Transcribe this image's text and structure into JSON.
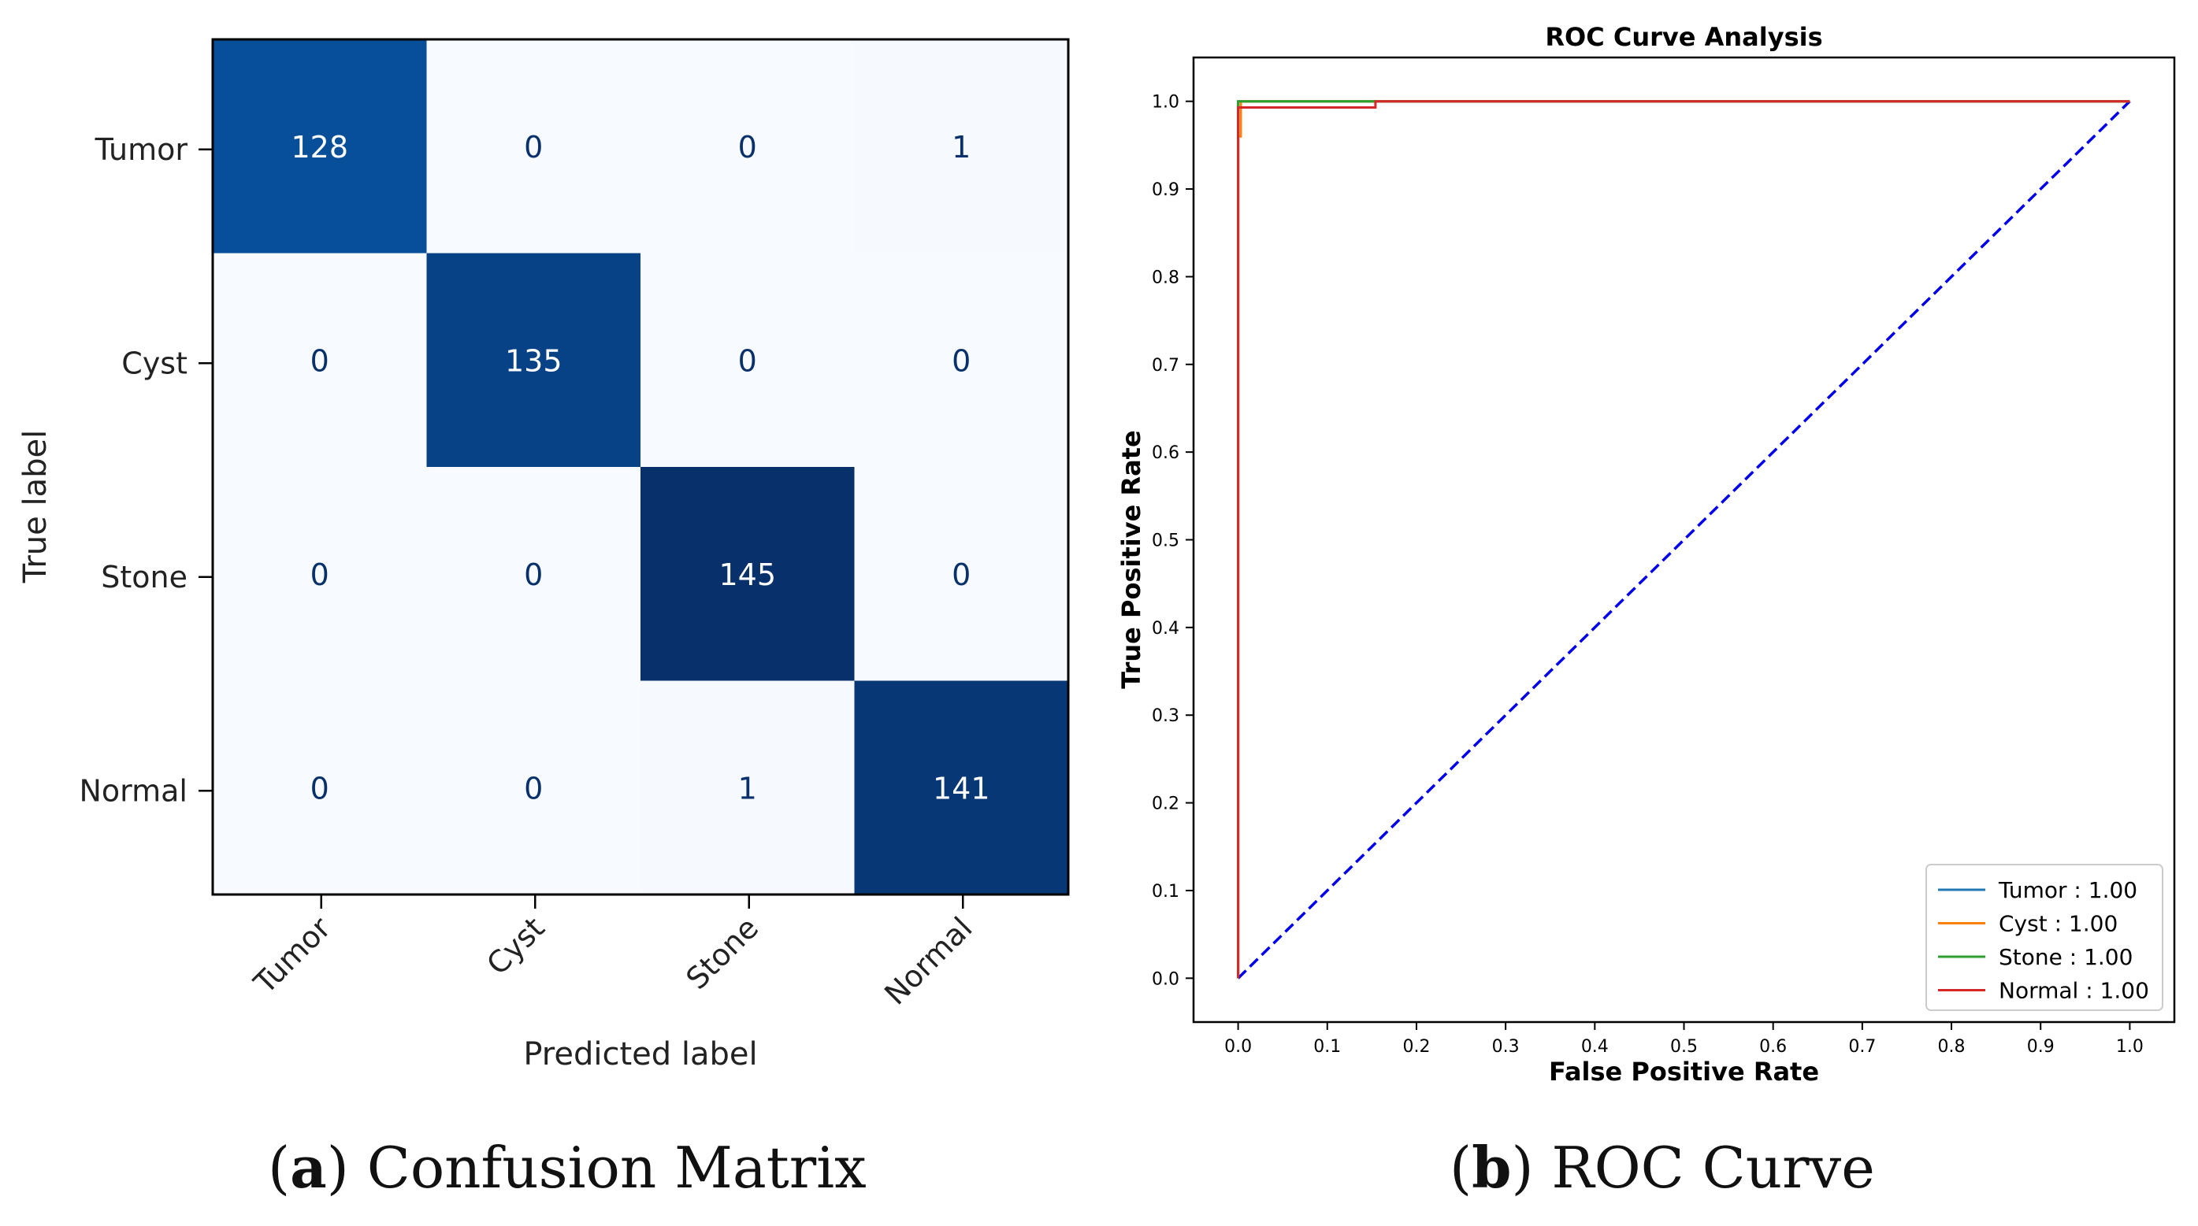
{
  "chart_data": [
    {
      "type": "heatmap",
      "title": "",
      "xlabel": "Predicted label",
      "ylabel": "True label",
      "x_categories": [
        "Tumor",
        "Cyst",
        "Stone",
        "Normal"
      ],
      "y_categories": [
        "Tumor",
        "Cyst",
        "Stone",
        "Normal"
      ],
      "matrix": [
        [
          128,
          0,
          0,
          1
        ],
        [
          0,
          135,
          0,
          0
        ],
        [
          0,
          0,
          145,
          0
        ],
        [
          0,
          0,
          1,
          141
        ]
      ],
      "colormap": "Blues",
      "value_range": [
        0,
        145
      ]
    },
    {
      "type": "line",
      "title": "ROC Curve Analysis",
      "xlabel": "False Positive Rate",
      "ylabel": "True Positive Rate",
      "xlim": [
        -0.05,
        1.05
      ],
      "ylim": [
        -0.05,
        1.05
      ],
      "xticks": [
        "0.0",
        "0.1",
        "0.2",
        "0.3",
        "0.4",
        "0.5",
        "0.6",
        "0.7",
        "0.8",
        "0.9",
        "1.0"
      ],
      "yticks": [
        "0.0",
        "0.1",
        "0.2",
        "0.3",
        "0.4",
        "0.5",
        "0.6",
        "0.7",
        "0.8",
        "0.9",
        "1.0"
      ],
      "legend_position": "bottom-right",
      "series": [
        {
          "name": "Tumor",
          "label": "Tumor : 1.00",
          "color": "#1f77b4",
          "x": [
            0,
            0,
            1
          ],
          "y": [
            0,
            1,
            1
          ]
        },
        {
          "name": "Cyst",
          "label": "Cyst : 1.00",
          "color": "#ff7f0e",
          "x": [
            0,
            0,
            0.003,
            0.003,
            1
          ],
          "y": [
            0,
            0.96,
            0.96,
            1,
            1
          ]
        },
        {
          "name": "Stone",
          "label": "Stone : 1.00",
          "color": "#2ca02c",
          "x": [
            0,
            0,
            1
          ],
          "y": [
            0,
            1,
            1
          ]
        },
        {
          "name": "Normal",
          "label": "Normal : 1.00",
          "color": "#d62728",
          "x": [
            0,
            0,
            0.003,
            0.003,
            0.154,
            0.154,
            1
          ],
          "y": [
            0,
            0.993,
            0.993,
            0.993,
            0.993,
            1,
            1
          ]
        }
      ],
      "diagonal": {
        "x": [
          0,
          1
        ],
        "y": [
          0,
          1
        ],
        "color": "#0000ee",
        "style": "dashed"
      }
    }
  ],
  "captions": {
    "a_letter": "a",
    "a_text": "Confusion Matrix",
    "b_letter": "b",
    "b_text": "ROC Curve"
  }
}
